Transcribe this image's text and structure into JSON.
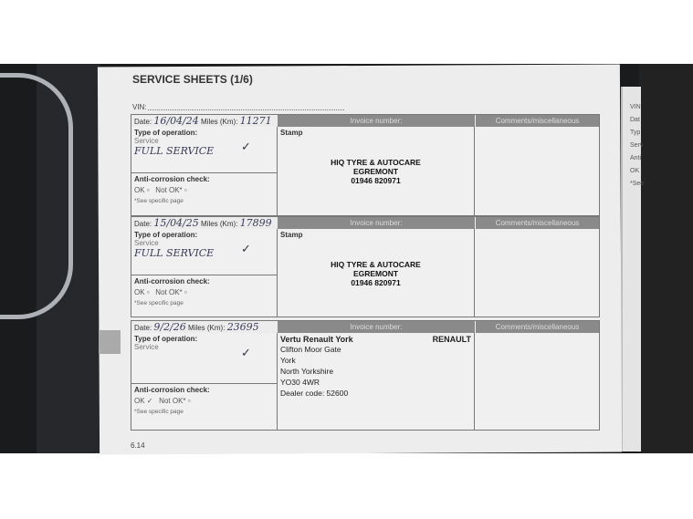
{
  "page": {
    "title": "SERVICE SHEETS (1/6)",
    "vin_label": "VIN:",
    "page_number": "6.14"
  },
  "labels": {
    "date": "Date:",
    "miles": "Miles (Km):",
    "invoice": "Invoice number:",
    "comments": "Comments/miscellaneous",
    "type": "Type of operation:",
    "service": "Service",
    "anti": "Anti-corrosion check:",
    "ok": "OK",
    "notok": "Not OK*",
    "see": "*See specific page",
    "stamp": "Stamp"
  },
  "entries": [
    {
      "date": "16/04/24",
      "miles": "11271",
      "service_note": "FULL SERVICE",
      "stamp": [
        "HIQ TYRE & AUTOCARE",
        "EGREMONT",
        "01946 820971"
      ]
    },
    {
      "date": "15/04/25",
      "miles": "17899",
      "service_note": "FULL SERVICE",
      "stamp": [
        "HIQ TYRE & AUTOCARE",
        "EGREMONT",
        "01946 820971"
      ]
    },
    {
      "date": "9/2/26",
      "miles": "23695",
      "service_note": "",
      "stamp_name": "Vertu Renault York",
      "brand": "RENAULT",
      "stamp": [
        "Clifton Moor Gate",
        "York",
        "North Yorkshire",
        "YO30 4WR",
        "Dealer code: 52600"
      ]
    }
  ],
  "right_page": {
    "labels": [
      "VIN",
      "Dat",
      "Typ",
      "Serv",
      "Anti",
      "OK",
      "*See"
    ]
  }
}
